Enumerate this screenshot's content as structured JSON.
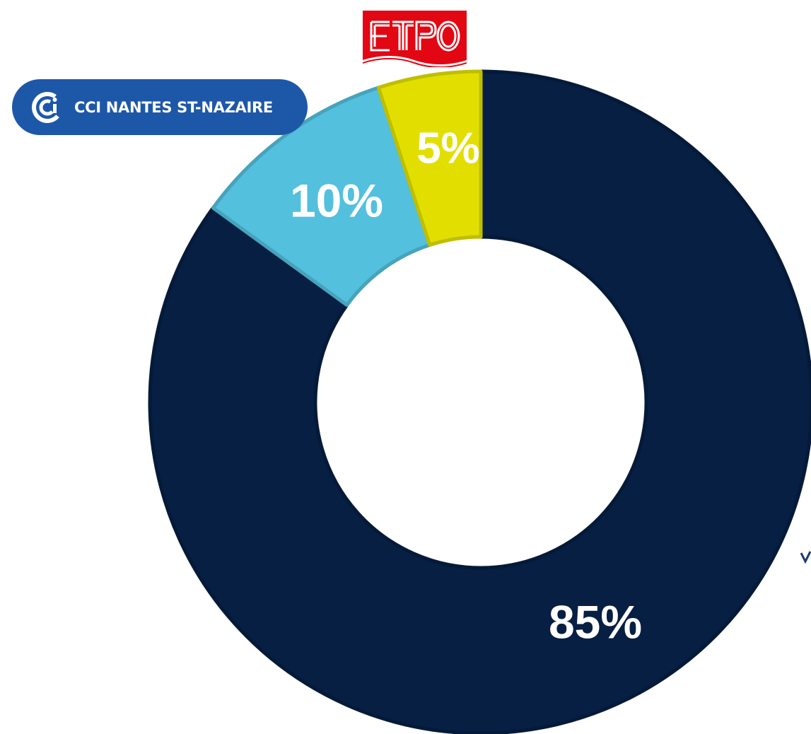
{
  "chart_data": {
    "type": "pie",
    "donut": true,
    "start_angle_deg": 0,
    "direction": "clockwise",
    "slices": [
      {
        "value": 85,
        "label": "85%",
        "color": "#061f42"
      },
      {
        "value": 10,
        "label": "10%",
        "color": "#53c0dd"
      },
      {
        "value": 5,
        "label": "5%",
        "color": "#e2df00"
      }
    ],
    "title": "",
    "legend": "none"
  },
  "logos": {
    "cci": {
      "text": "CCI NANTES ST-NAZAIRE",
      "background": "#1d57a8",
      "icon": "cci-swirl-icon"
    },
    "etpo": {
      "text": "ETPO",
      "color": "#e30613"
    }
  },
  "colors": {
    "background": "#ffffff",
    "label_text": "#ffffff"
  }
}
